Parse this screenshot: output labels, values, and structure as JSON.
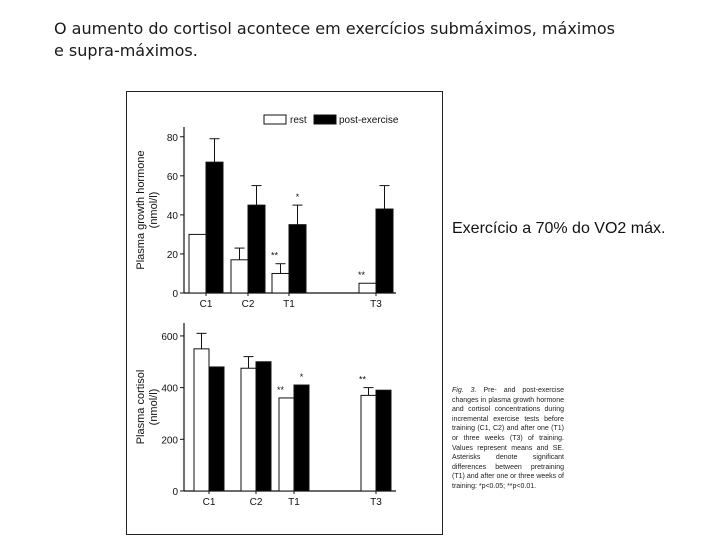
{
  "title": {
    "line1": "O aumento do cortisol acontece em exercícios submáximos, máximos",
    "line2": "e supra-máximos."
  },
  "side_note": "Exercício a 70% do VO2 máx.",
  "figure_caption": {
    "fig_label": "Fig. 3.",
    "text": "Pre- and post-exercise changes in plasma growth hormone and cortisol concentrations during incremental exercise tests before training (C1, C2) and after one (T1) or three weeks (T3) of training. Values represent means and SE. Asterisks denote significant differences between pretraining (T1) and after one or three weeks of training: *p<0.05; **p<0.01."
  },
  "colors": {
    "rest": "#ffffff",
    "post": "#000000",
    "ink": "#111111"
  },
  "chart_data": [
    {
      "type": "bar",
      "ylabel_line1": "Plasma growth hormone",
      "ylabel_line2": "(nmol/l)",
      "ylim": [
        0,
        85
      ],
      "yticks": [
        "0",
        "20",
        "40",
        "60",
        "80"
      ],
      "categories": [
        "C1",
        "C2",
        "T1",
        "T3"
      ],
      "legend": [
        "rest",
        "post-exercise"
      ],
      "legend_position": "top-right",
      "series": [
        {
          "name": "rest",
          "values": [
            30,
            17,
            10,
            5
          ],
          "errors": [
            0,
            6,
            5,
            0
          ]
        },
        {
          "name": "post-exercise",
          "values": [
            67,
            45,
            35,
            43
          ],
          "errors": [
            12,
            10,
            10,
            12
          ]
        }
      ],
      "annotations": [
        {
          "label": "*",
          "category": "T1",
          "series": "post-exercise"
        },
        {
          "label": "**",
          "category": "T1",
          "series": "rest"
        },
        {
          "label": "**",
          "category": "T3",
          "series": "rest"
        }
      ]
    },
    {
      "type": "bar",
      "ylabel_line1": "Plasma cortisol",
      "ylabel_line2": "(nmol/l)",
      "ylim": [
        0,
        650
      ],
      "yticks": [
        "0",
        "200",
        "400",
        "600"
      ],
      "categories": [
        "C1",
        "C2",
        "T1",
        "T3"
      ],
      "series": [
        {
          "name": "rest",
          "values": [
            550,
            475,
            360,
            370
          ],
          "errors": [
            60,
            45,
            0,
            30
          ]
        },
        {
          "name": "post-exercise",
          "values": [
            480,
            500,
            410,
            390
          ],
          "errors": [
            0,
            0,
            0,
            0
          ]
        }
      ],
      "annotations": [
        {
          "label": "*",
          "category": "T1",
          "series": "post-exercise"
        },
        {
          "label": "**",
          "category": "T1",
          "series": "rest"
        },
        {
          "label": "**",
          "category": "T3",
          "series": "rest"
        }
      ]
    }
  ]
}
